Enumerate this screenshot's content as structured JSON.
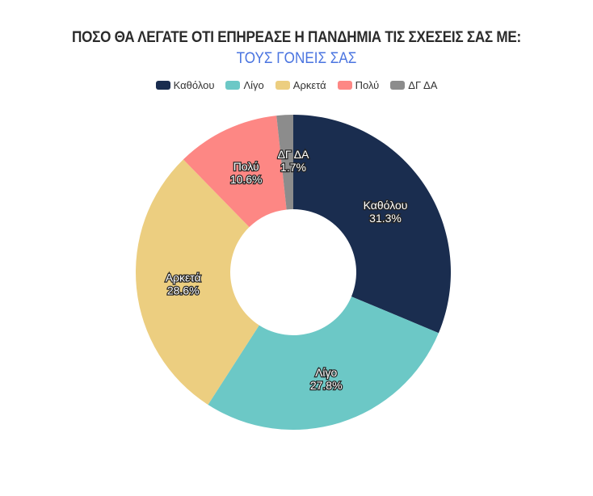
{
  "chart_data": {
    "type": "pie",
    "variant": "donut",
    "title": "ΠΟΣΟ ΘΑ ΛΕΓΑΤΕ ΟΤΙ ΕΠΗΡΕΑΣΕ Η ΠΑΝΔΗΜΙΑ ΤΙΣ ΣΧΕΣΕΙΣ ΣΑΣ ΜΕ:",
    "subtitle": "ΤΟΥΣ ΓΟΝΕΙΣ ΣΑΣ",
    "legend_position": "top",
    "slices": [
      {
        "name": "Καθόλου",
        "value": 31.3,
        "label": "31.3%",
        "color": "#1a2d4f"
      },
      {
        "name": "Λίγο",
        "value": 27.8,
        "label": "27.8%",
        "color": "#6cc8c6"
      },
      {
        "name": "Αρκετά",
        "value": 28.6,
        "label": "28.6%",
        "color": "#ecce80"
      },
      {
        "name": "Πολύ",
        "value": 10.6,
        "label": "10.6%",
        "color": "#fd8784"
      },
      {
        "name": "ΔΓ ΔΑ",
        "value": 1.7,
        "label": "1.7%",
        "color": "#8c8c8c"
      }
    ]
  }
}
